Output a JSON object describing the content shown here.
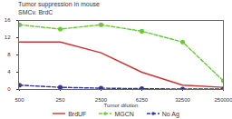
{
  "chart_data": {
    "type": "line",
    "title": "Tumor suppression in mouse",
    "subtitle": "SMCv. BrdC",
    "x_label": "Tumor dilution",
    "categories": [
      "500",
      "250",
      "2500",
      "6250",
      "32500",
      "250000"
    ],
    "series": [
      {
        "name": "BrdUF",
        "color": "#cc3333",
        "marker": "none",
        "line_style": "solid",
        "values": [
          11,
          11,
          8.5,
          4,
          1,
          0.5
        ]
      },
      {
        "name": "MGCN",
        "color": "#66cc33",
        "marker": "circle",
        "line_style": "dashed",
        "values": [
          15,
          14,
          15,
          13.5,
          11,
          2
        ]
      },
      {
        "name": "No Ag",
        "color": "#3333aa",
        "marker": "circle",
        "line_style": "dashed",
        "values": [
          1,
          0.5,
          0.3,
          0.2,
          0.1,
          0.1
        ]
      }
    ],
    "ylim": [
      0,
      16
    ],
    "yticks": [
      0,
      4,
      8,
      12,
      16
    ],
    "grid": false,
    "legend": "bottom"
  }
}
